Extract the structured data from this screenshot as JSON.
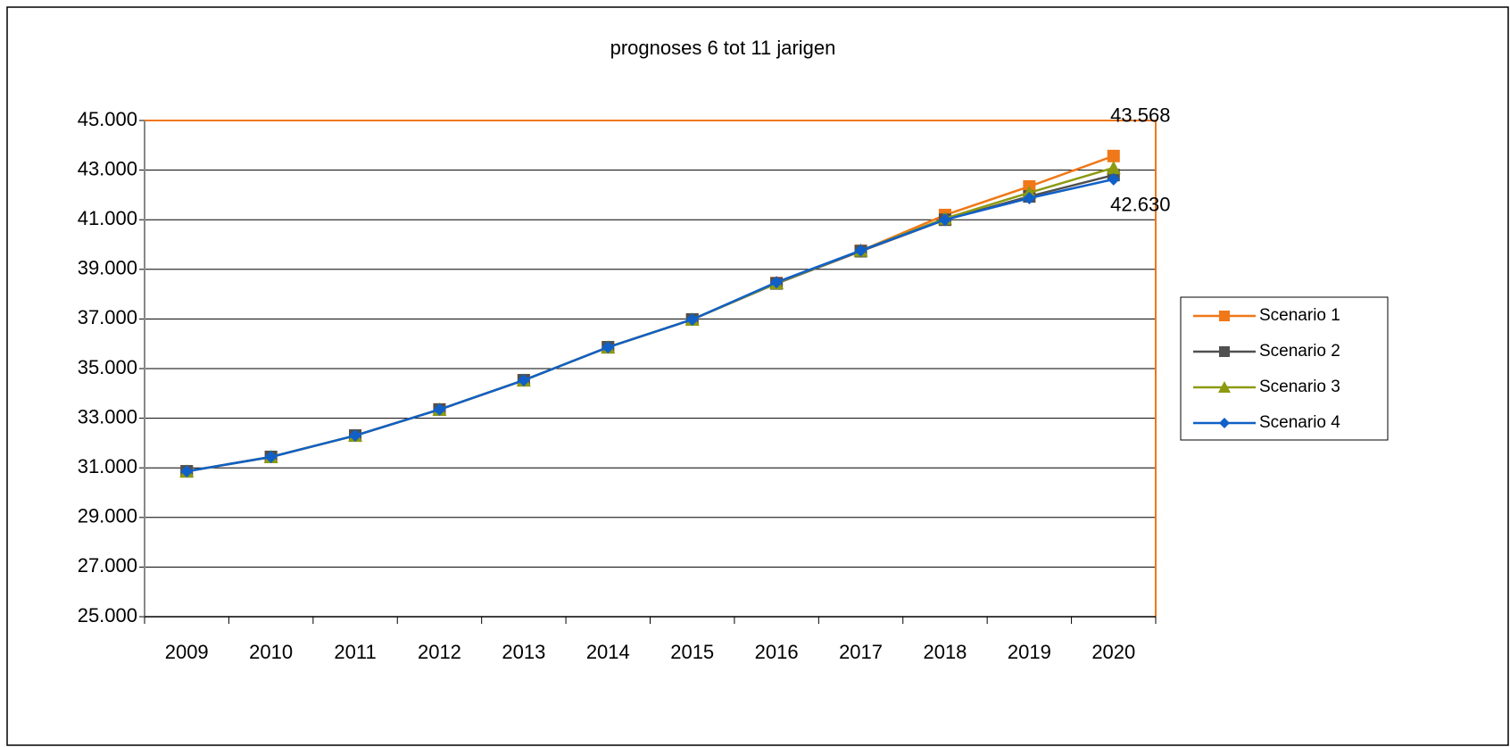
{
  "chart_data": {
    "type": "line",
    "title": "prognoses 6 tot 11 jarigen",
    "categories": [
      "2009",
      "2010",
      "2011",
      "2012",
      "2013",
      "2014",
      "2015",
      "2016",
      "2017",
      "2018",
      "2019",
      "2020"
    ],
    "series": [
      {
        "name": "Scenario 1",
        "color": "#f07818",
        "marker": "square",
        "values": [
          30860,
          31440,
          32300,
          33350,
          34530,
          35860,
          36980,
          38450,
          39750,
          41190,
          42340,
          43568
        ],
        "value_labels": [
          null,
          null,
          null,
          null,
          null,
          null,
          null,
          null,
          null,
          null,
          null,
          "43.568"
        ]
      },
      {
        "name": "Scenario 2",
        "color": "#505050",
        "marker": "square",
        "values": [
          30860,
          31440,
          32300,
          33350,
          34530,
          35860,
          36980,
          38430,
          39730,
          41000,
          41940,
          42800
        ]
      },
      {
        "name": "Scenario 3",
        "color": "#8c9a10",
        "marker": "triangle",
        "values": [
          30860,
          31440,
          32300,
          33350,
          34530,
          35860,
          36980,
          38450,
          39760,
          41050,
          42090,
          43090
        ]
      },
      {
        "name": "Scenario 4",
        "color": "#1060c8",
        "marker": "diamond",
        "values": [
          30860,
          31440,
          32300,
          33350,
          34530,
          35860,
          36980,
          38480,
          39760,
          41000,
          41870,
          42630
        ],
        "value_labels": [
          null,
          null,
          null,
          null,
          null,
          null,
          null,
          null,
          null,
          null,
          null,
          "42.630"
        ]
      }
    ],
    "ylim": [
      25000,
      45000
    ],
    "yticks": [
      {
        "value": 25000,
        "label": "25.000"
      },
      {
        "value": 27000,
        "label": "27.000"
      },
      {
        "value": 29000,
        "label": "29.000"
      },
      {
        "value": 31000,
        "label": "31.000"
      },
      {
        "value": 33000,
        "label": "33.000"
      },
      {
        "value": 35000,
        "label": "35.000"
      },
      {
        "value": 37000,
        "label": "37.000"
      },
      {
        "value": 39000,
        "label": "39.000"
      },
      {
        "value": 41000,
        "label": "41.000"
      },
      {
        "value": 43000,
        "label": "43.000"
      },
      {
        "value": 45000,
        "label": "45.000"
      }
    ],
    "grid": true,
    "legend": "right"
  }
}
